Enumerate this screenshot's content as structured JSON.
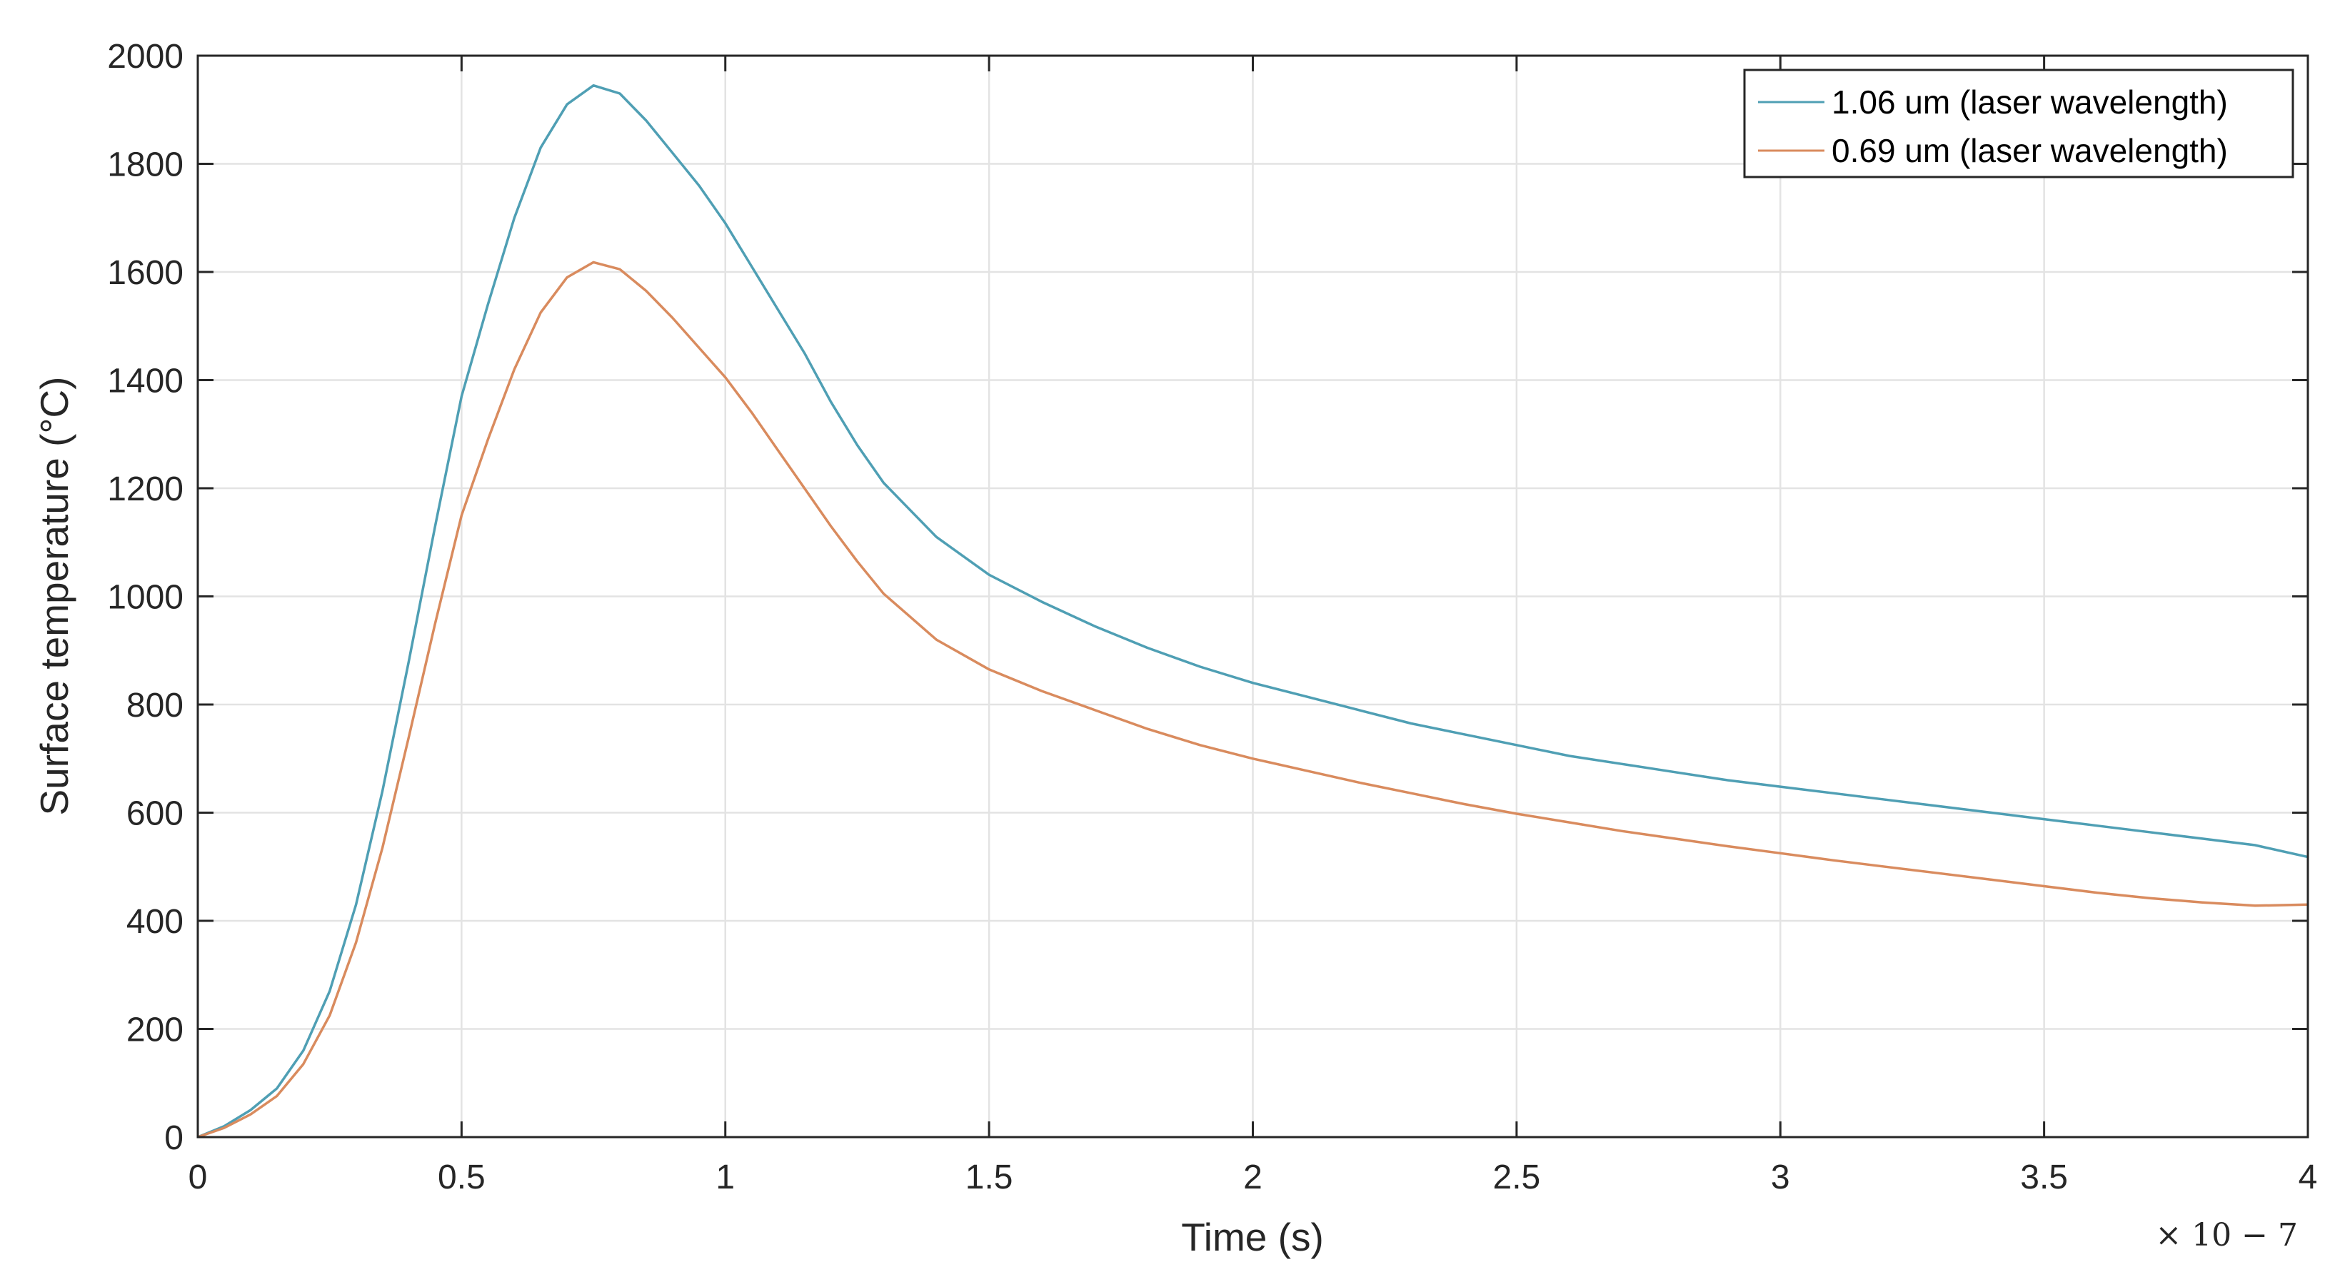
{
  "chart_data": {
    "type": "line",
    "title": "",
    "xlabel": "Time (s)",
    "ylabel": "Surface temperature (°C)",
    "x_exponent_label": "× 10 − 7",
    "xlim": [
      0,
      4
    ],
    "ylim": [
      0,
      2000
    ],
    "xticks": [
      0,
      0.5,
      1,
      1.5,
      2,
      2.5,
      3,
      3.5,
      4
    ],
    "xtick_labels": [
      "0",
      "0.5",
      "1",
      "1.5",
      "2",
      "2.5",
      "3",
      "3.5",
      "4"
    ],
    "yticks": [
      0,
      200,
      400,
      600,
      800,
      1000,
      1200,
      1400,
      1600,
      1800,
      2000
    ],
    "ytick_labels": [
      "0",
      "200",
      "400",
      "600",
      "800",
      "1000",
      "1200",
      "1400",
      "1600",
      "1800",
      "2000"
    ],
    "grid": true,
    "legend_position": "top-right",
    "x": [
      0,
      0.05,
      0.1,
      0.15,
      0.2,
      0.25,
      0.3,
      0.35,
      0.4,
      0.45,
      0.5,
      0.55,
      0.6,
      0.65,
      0.7,
      0.75,
      0.8,
      0.85,
      0.9,
      0.95,
      1.0,
      1.05,
      1.1,
      1.15,
      1.2,
      1.25,
      1.3,
      1.4,
      1.5,
      1.6,
      1.7,
      1.8,
      1.9,
      2.0,
      2.1,
      2.2,
      2.3,
      2.4,
      2.5,
      2.6,
      2.7,
      2.8,
      2.9,
      3.0,
      3.1,
      3.2,
      3.3,
      3.4,
      3.5,
      3.6,
      3.7,
      3.8,
      3.9,
      4.0
    ],
    "series": [
      {
        "name": "1.06 um (laser wavelength)",
        "color": "#4f9fb4",
        "values": [
          0,
          20,
          50,
          90,
          160,
          270,
          430,
          640,
          880,
          1130,
          1370,
          1540,
          1700,
          1830,
          1910,
          1945,
          1930,
          1880,
          1820,
          1760,
          1690,
          1610,
          1530,
          1450,
          1360,
          1280,
          1210,
          1110,
          1040,
          990,
          945,
          905,
          870,
          840,
          815,
          790,
          765,
          745,
          725,
          705,
          690,
          675,
          660,
          648,
          636,
          624,
          612,
          600,
          588,
          576,
          564,
          552,
          540,
          518
        ]
      },
      {
        "name": "0.69 um (laser wavelength)",
        "color": "#d98b5e",
        "values": [
          0,
          17,
          42,
          76,
          135,
          225,
          360,
          535,
          740,
          950,
          1150,
          1290,
          1420,
          1525,
          1590,
          1618,
          1605,
          1565,
          1515,
          1460,
          1405,
          1340,
          1270,
          1200,
          1130,
          1065,
          1005,
          920,
          865,
          825,
          790,
          755,
          725,
          700,
          678,
          656,
          636,
          616,
          598,
          582,
          566,
          552,
          538,
          525,
          512,
          500,
          488,
          476,
          464,
          452,
          442,
          434,
          428,
          430
        ]
      }
    ]
  }
}
